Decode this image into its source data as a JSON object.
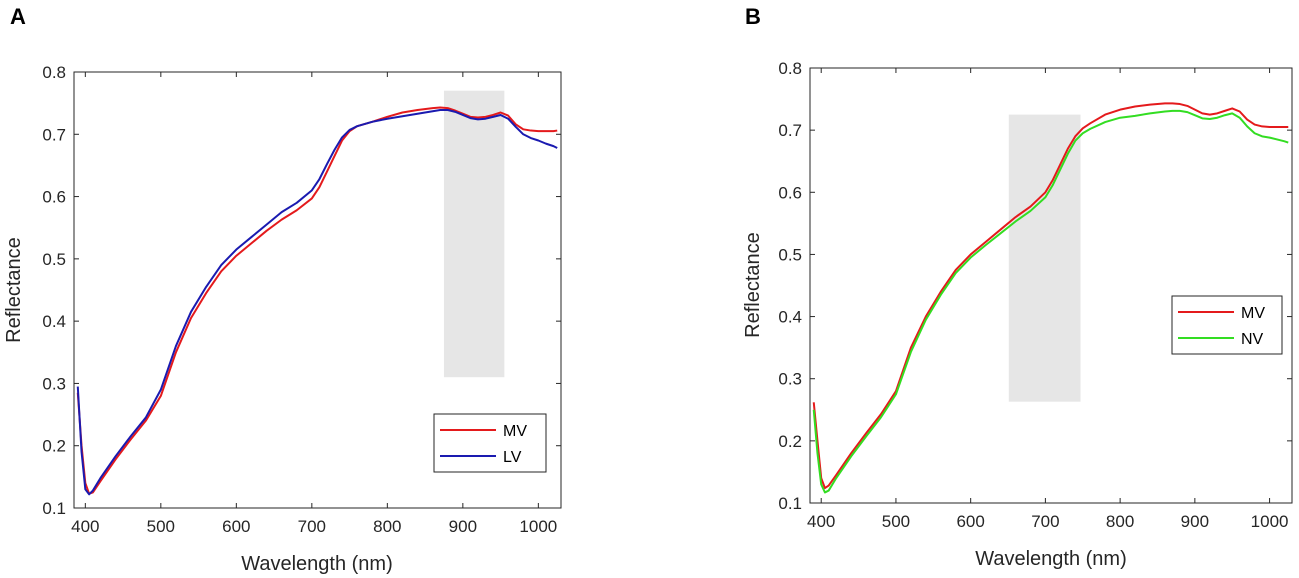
{
  "chart_data": [
    {
      "type": "line",
      "panel_label": "A",
      "xlabel": "Wavelength (nm)",
      "ylabel": "Reflectance",
      "xlim": [
        385,
        1030
      ],
      "ylim": [
        0.1,
        0.8
      ],
      "xticks": [
        400,
        500,
        600,
        700,
        800,
        900,
        1000
      ],
      "yticks": [
        0.1,
        0.2,
        0.3,
        0.4,
        0.5,
        0.6,
        0.7,
        0.8
      ],
      "xtick_labels": [
        "400",
        "500",
        "600",
        "700",
        "800",
        "900",
        "1000"
      ],
      "ytick_labels": [
        "0.1",
        "0.2",
        "0.3",
        "0.4",
        "0.5",
        "0.6",
        "0.7",
        "0.8"
      ],
      "highlight": {
        "x_range": [
          875,
          955
        ],
        "y_range": [
          0.31,
          0.77
        ],
        "color": "#e6e6e6"
      },
      "legend_position": "bottom-right",
      "series": [
        {
          "name": "MV",
          "color": "#e41a1c",
          "x": [
            390,
            395,
            400,
            405,
            410,
            420,
            440,
            460,
            480,
            500,
            520,
            540,
            560,
            580,
            600,
            620,
            640,
            660,
            680,
            700,
            710,
            720,
            730,
            740,
            750,
            760,
            780,
            800,
            820,
            840,
            860,
            870,
            880,
            890,
            900,
            910,
            920,
            930,
            940,
            950,
            960,
            970,
            980,
            990,
            1000,
            1010,
            1020,
            1025
          ],
          "y": [
            0.285,
            0.2,
            0.14,
            0.123,
            0.125,
            0.143,
            0.178,
            0.21,
            0.24,
            0.28,
            0.35,
            0.405,
            0.445,
            0.48,
            0.505,
            0.525,
            0.545,
            0.563,
            0.578,
            0.597,
            0.615,
            0.64,
            0.665,
            0.69,
            0.705,
            0.713,
            0.72,
            0.728,
            0.735,
            0.739,
            0.742,
            0.743,
            0.742,
            0.738,
            0.733,
            0.728,
            0.727,
            0.728,
            0.731,
            0.735,
            0.73,
            0.716,
            0.708,
            0.706,
            0.705,
            0.705,
            0.705,
            0.706
          ]
        },
        {
          "name": "LV",
          "color": "#1a1ab0",
          "x": [
            390,
            395,
            400,
            405,
            410,
            420,
            440,
            460,
            480,
            500,
            520,
            540,
            560,
            580,
            600,
            620,
            640,
            660,
            680,
            700,
            710,
            720,
            730,
            740,
            750,
            760,
            780,
            800,
            820,
            840,
            860,
            870,
            880,
            890,
            900,
            910,
            920,
            930,
            940,
            950,
            960,
            970,
            980,
            990,
            1000,
            1010,
            1020,
            1025
          ],
          "y": [
            0.295,
            0.19,
            0.13,
            0.122,
            0.128,
            0.148,
            0.183,
            0.215,
            0.245,
            0.29,
            0.36,
            0.415,
            0.455,
            0.49,
            0.515,
            0.535,
            0.555,
            0.575,
            0.59,
            0.61,
            0.628,
            0.652,
            0.675,
            0.695,
            0.707,
            0.713,
            0.72,
            0.725,
            0.729,
            0.733,
            0.737,
            0.739,
            0.739,
            0.736,
            0.731,
            0.726,
            0.724,
            0.725,
            0.728,
            0.731,
            0.725,
            0.712,
            0.7,
            0.694,
            0.69,
            0.685,
            0.681,
            0.678
          ]
        }
      ]
    },
    {
      "type": "line",
      "panel_label": "B",
      "xlabel": "Wavelength (nm)",
      "ylabel": "Reflectance",
      "xlim": [
        385,
        1030
      ],
      "ylim": [
        0.1,
        0.8
      ],
      "xticks": [
        400,
        500,
        600,
        700,
        800,
        900,
        1000
      ],
      "yticks": [
        0.1,
        0.2,
        0.3,
        0.4,
        0.5,
        0.6,
        0.7,
        0.8
      ],
      "xtick_labels": [
        "400",
        "500",
        "600",
        "700",
        "800",
        "900",
        "1000"
      ],
      "ytick_labels": [
        "0.1",
        "0.2",
        "0.3",
        "0.4",
        "0.5",
        "0.6",
        "0.7",
        "0.8"
      ],
      "highlight": {
        "x_range": [
          651,
          747
        ],
        "y_range": [
          0.263,
          0.725
        ],
        "color": "#e6e6e6"
      },
      "legend_position": "middle-right",
      "series": [
        {
          "name": "MV",
          "color": "#e41a1c",
          "x": [
            390,
            395,
            400,
            405,
            410,
            420,
            440,
            460,
            480,
            500,
            520,
            540,
            560,
            580,
            600,
            620,
            640,
            660,
            680,
            700,
            710,
            720,
            730,
            740,
            750,
            760,
            780,
            800,
            820,
            840,
            860,
            870,
            880,
            890,
            900,
            910,
            920,
            930,
            940,
            950,
            960,
            970,
            980,
            990,
            1000,
            1010,
            1020,
            1025
          ],
          "y": [
            0.262,
            0.2,
            0.14,
            0.124,
            0.128,
            0.145,
            0.18,
            0.212,
            0.243,
            0.28,
            0.35,
            0.4,
            0.44,
            0.475,
            0.5,
            0.52,
            0.54,
            0.56,
            0.577,
            0.6,
            0.62,
            0.645,
            0.67,
            0.69,
            0.703,
            0.711,
            0.725,
            0.733,
            0.738,
            0.741,
            0.743,
            0.743,
            0.742,
            0.739,
            0.733,
            0.727,
            0.725,
            0.727,
            0.731,
            0.735,
            0.73,
            0.717,
            0.709,
            0.706,
            0.705,
            0.705,
            0.705,
            0.705
          ]
        },
        {
          "name": "NV",
          "color": "#33dd22",
          "x": [
            390,
            395,
            400,
            405,
            410,
            420,
            440,
            460,
            480,
            500,
            520,
            540,
            560,
            580,
            600,
            620,
            640,
            660,
            680,
            700,
            710,
            720,
            730,
            740,
            750,
            760,
            780,
            800,
            820,
            840,
            860,
            870,
            880,
            890,
            900,
            910,
            920,
            930,
            940,
            950,
            960,
            970,
            980,
            990,
            1000,
            1010,
            1020,
            1025
          ],
          "y": [
            0.25,
            0.18,
            0.13,
            0.117,
            0.12,
            0.14,
            0.175,
            0.207,
            0.238,
            0.275,
            0.343,
            0.395,
            0.435,
            0.47,
            0.495,
            0.515,
            0.534,
            0.553,
            0.57,
            0.592,
            0.612,
            0.637,
            0.662,
            0.683,
            0.695,
            0.702,
            0.713,
            0.72,
            0.723,
            0.727,
            0.73,
            0.731,
            0.731,
            0.729,
            0.724,
            0.719,
            0.718,
            0.72,
            0.724,
            0.727,
            0.72,
            0.706,
            0.695,
            0.69,
            0.688,
            0.685,
            0.682,
            0.68
          ]
        }
      ]
    }
  ]
}
